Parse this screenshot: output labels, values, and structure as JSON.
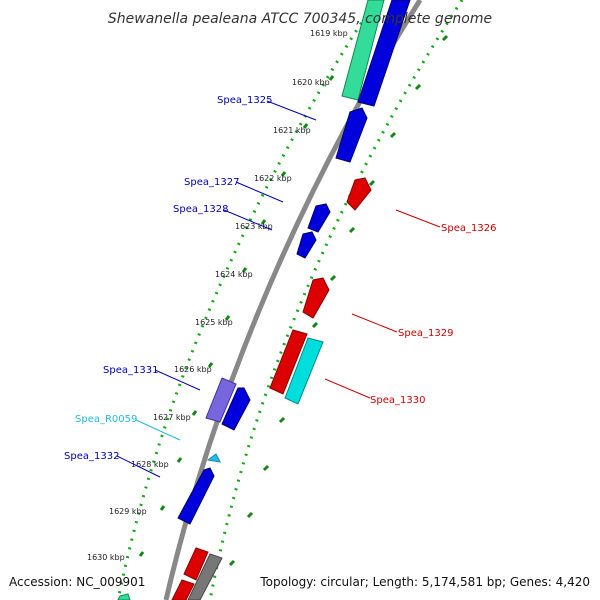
{
  "title": "Shewanella pealeana ATCC 700345, complete genome",
  "footer": {
    "accession": "Accession: NC_009901",
    "topology": "Topology: circular; Length: 5,174,581 bp; Genes: 4,420"
  },
  "tick_labels": [
    "1619 kbp",
    "1620 kbp",
    "1621 kbp",
    "1622 kbp",
    "1623 kbp",
    "1624 kbp",
    "1625 kbp",
    "1626 kbp",
    "1627 kbp",
    "1628 kbp",
    "1629 kbp",
    "1630 kbp"
  ],
  "genes": [
    {
      "label": "Spea_1325",
      "color": "#0000bb"
    },
    {
      "label": "Spea_1327",
      "color": "#0000bb"
    },
    {
      "label": "Spea_1328",
      "color": "#0000bb"
    },
    {
      "label": "Spea_1326",
      "color": "#cc0000"
    },
    {
      "label": "Spea_1329",
      "color": "#cc0000"
    },
    {
      "label": "Spea_1331",
      "color": "#0000bb"
    },
    {
      "label": "Spea_R0059",
      "color": "#22bbdd"
    },
    {
      "label": "Spea_1330",
      "color": "#cc0000"
    },
    {
      "label": "Spea_1332",
      "color": "#0000bb"
    }
  ]
}
